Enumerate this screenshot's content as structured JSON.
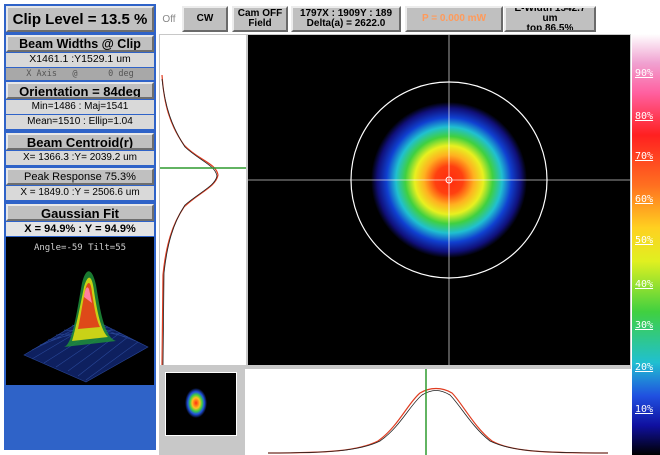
{
  "left_panel": {
    "clip_level": "Clip Level = 13.5 %",
    "beam_widths_title": "Beam Widths @ Clip",
    "beam_widths_value": "X1461.1 :Y1529.1 um",
    "axis_row": "X Axis   @      0 deg",
    "orientation": "Orientation =  84deg",
    "min_maj": "Min=1486 : Maj=1541",
    "mean_ellip": "Mean=1510 : Ellip=1.04",
    "centroid_title": "Beam Centroid(r)",
    "centroid_value": "X= 1366.3 :Y= 2039.2 um",
    "peak_response": "Peak Response  75.3%",
    "peak_position": "X = 1849.0 :Y = 2506.6 um",
    "gaussian_title": "Gaussian Fit",
    "gaussian_value": "X = 94.9% : Y = 94.9%",
    "angle_tilt": "Angle=-59 Tilt=55"
  },
  "toolbar": {
    "off": "Off",
    "cw": "CW",
    "cam": "Cam OFF\nField",
    "coords": "1797X : 1909Y : 189\nDelta(a) = 2622.0",
    "power": "P = 0.000 mW",
    "ewidth": "E-Width 1542.7 um\ntop 86.5%"
  },
  "colorbar": {
    "labels": [
      "90%",
      "80%",
      "70%",
      "60%",
      "50%",
      "40%",
      "30%",
      "20%",
      "10%"
    ]
  },
  "colors": {
    "panel_blue": "#2f63c8",
    "power_text": "#ff9a5a",
    "green_line": "#2e9a2e",
    "profile_red": "#e03c20"
  }
}
